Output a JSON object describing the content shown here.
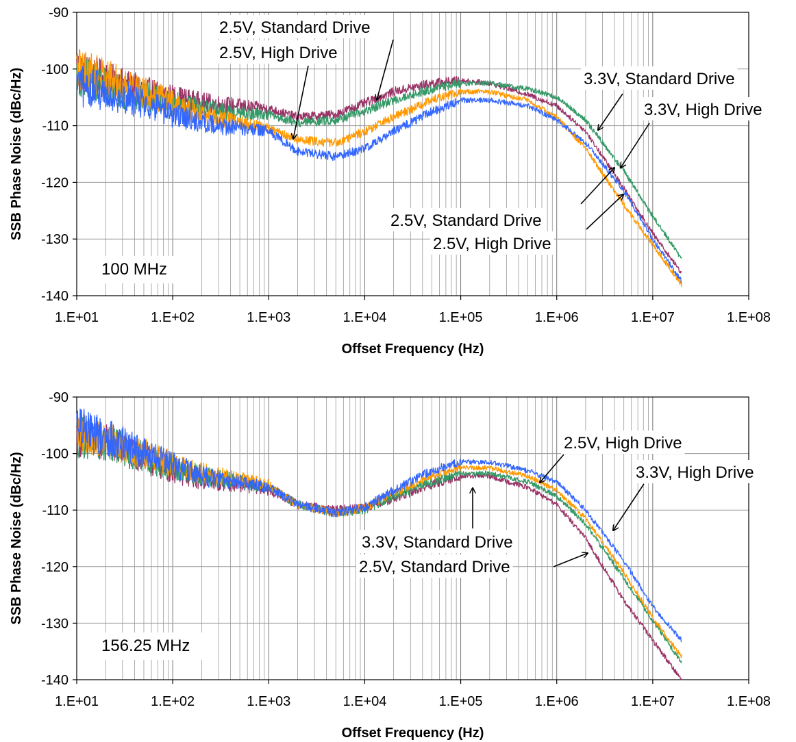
{
  "chart_data": [
    {
      "type": "line",
      "panel_label": "100 MHz",
      "xlabel": "Offset Frequency (Hz)",
      "ylabel": "SSB Phase  Noise (dBc/Hz)",
      "x_scale": "log",
      "xlim": [
        10,
        100000000
      ],
      "ylim": [
        -140,
        -90
      ],
      "xtick_labels": [
        "1.E+01",
        "1.E+02",
        "1.E+03",
        "1.E+04",
        "1.E+05",
        "1.E+06",
        "1.E+07",
        "1.E+08"
      ],
      "ytick_labels": [
        "-90",
        "-100",
        "-110",
        "-120",
        "-130",
        "-140"
      ],
      "grid": true,
      "series": [
        {
          "color": "#993366",
          "x": [
            10,
            20,
            50,
            100,
            200,
            500,
            1000,
            2000,
            5000,
            10000,
            20000,
            50000,
            100000,
            200000,
            500000,
            1000000,
            2000000,
            5000000,
            10000000,
            20000000
          ],
          "y": [
            -100,
            -102,
            -104,
            -105,
            -106,
            -106.5,
            -107,
            -108.5,
            -108,
            -106,
            -104,
            -102.5,
            -102,
            -102.5,
            -104.5,
            -106.5,
            -111,
            -121,
            -129,
            -136
          ]
        },
        {
          "color": "#339966",
          "x": [
            10,
            20,
            50,
            100,
            200,
            500,
            1000,
            2000,
            5000,
            10000,
            20000,
            50000,
            100000,
            200000,
            500000,
            1000000,
            2000000,
            5000000,
            10000000,
            20000000
          ],
          "y": [
            -101,
            -103,
            -105,
            -106,
            -107,
            -108,
            -108,
            -109.5,
            -109,
            -107.5,
            -105.5,
            -103.5,
            -102.5,
            -102.5,
            -103.5,
            -105,
            -109,
            -118,
            -126,
            -133.5
          ]
        },
        {
          "color": "#FF9900",
          "x": [
            10,
            20,
            50,
            100,
            200,
            500,
            1000,
            2000,
            5000,
            10000,
            20000,
            50000,
            100000,
            200000,
            500000,
            1000000,
            2000000,
            5000000,
            10000000,
            20000000
          ],
          "y": [
            -100,
            -101.5,
            -104,
            -106,
            -108,
            -109.5,
            -110.5,
            -112.5,
            -113,
            -111,
            -108.5,
            -105.5,
            -104,
            -104,
            -105.5,
            -108.5,
            -114,
            -124,
            -131,
            -138
          ]
        },
        {
          "color": "#3366FF",
          "x": [
            10,
            20,
            50,
            100,
            200,
            500,
            1000,
            2000,
            5000,
            10000,
            20000,
            50000,
            100000,
            200000,
            500000,
            1000000,
            2000000,
            5000000,
            10000000,
            20000000
          ],
          "y": [
            -103,
            -104,
            -106,
            -108,
            -109.5,
            -110.5,
            -111,
            -114.5,
            -115.5,
            -114,
            -111,
            -107.5,
            -105.5,
            -105.5,
            -106.5,
            -109,
            -113,
            -121.5,
            -130,
            -137.5
          ]
        }
      ],
      "annotations": [
        {
          "text": "2.5V, Standard Drive"
        },
        {
          "text": "2.5V, High Drive"
        },
        {
          "text": "3.3V, Standard Drive"
        },
        {
          "text": "3.3V, High Drive"
        },
        {
          "text": "2.5V, Standard Drive"
        },
        {
          "text": "2.5V, High Drive"
        }
      ]
    },
    {
      "type": "line",
      "panel_label": "156.25 MHz",
      "xlabel": "Offset Frequency (Hz)",
      "ylabel": "SSB Phase  Noise (dBc/Hz)",
      "x_scale": "log",
      "xlim": [
        10,
        100000000
      ],
      "ylim": [
        -140,
        -90
      ],
      "xtick_labels": [
        "1.E+01",
        "1.E+02",
        "1.E+03",
        "1.E+04",
        "1.E+05",
        "1.E+06",
        "1.E+07",
        "1.E+08"
      ],
      "ytick_labels": [
        "-90",
        "-100",
        "-110",
        "-120",
        "-130",
        "-140"
      ],
      "grid": true,
      "series": [
        {
          "color": "#993366",
          "x": [
            10,
            20,
            50,
            100,
            200,
            500,
            1000,
            2000,
            5000,
            10000,
            20000,
            50000,
            100000,
            200000,
            500000,
            1000000,
            2000000,
            5000000,
            10000000,
            20000000
          ],
          "y": [
            -97,
            -98,
            -101,
            -103,
            -104.5,
            -105.5,
            -106.5,
            -109,
            -110,
            -109.5,
            -108,
            -105.5,
            -104,
            -104,
            -106,
            -109,
            -115,
            -126,
            -133,
            -140
          ]
        },
        {
          "color": "#339966",
          "x": [
            10,
            20,
            50,
            100,
            200,
            500,
            1000,
            2000,
            5000,
            10000,
            20000,
            50000,
            100000,
            200000,
            500000,
            1000000,
            2000000,
            5000000,
            10000000,
            20000000
          ],
          "y": [
            -97,
            -98,
            -100.5,
            -102.5,
            -104,
            -105,
            -106,
            -109,
            -110.5,
            -110,
            -107.5,
            -105,
            -103.5,
            -103.5,
            -105,
            -107.5,
            -112.5,
            -122,
            -129.5,
            -137
          ]
        },
        {
          "color": "#FF9900",
          "x": [
            10,
            20,
            50,
            100,
            200,
            500,
            1000,
            2000,
            5000,
            10000,
            20000,
            50000,
            100000,
            200000,
            500000,
            1000000,
            2000000,
            5000000,
            10000000,
            20000000
          ],
          "y": [
            -96,
            -97.5,
            -100,
            -102,
            -103.5,
            -104.5,
            -105.5,
            -109,
            -110.5,
            -109.5,
            -107,
            -104,
            -102.5,
            -102.5,
            -104,
            -106.5,
            -111.5,
            -121,
            -129,
            -136
          ]
        },
        {
          "color": "#3366FF",
          "x": [
            10,
            20,
            50,
            100,
            200,
            500,
            1000,
            2000,
            5000,
            10000,
            20000,
            50000,
            100000,
            200000,
            500000,
            1000000,
            2000000,
            5000000,
            10000000,
            20000000
          ],
          "y": [
            -95,
            -97,
            -100,
            -102,
            -104,
            -105,
            -106,
            -109,
            -110.5,
            -109.5,
            -106.5,
            -103,
            -101.5,
            -101.5,
            -103,
            -105,
            -110,
            -119,
            -127,
            -133
          ]
        }
      ],
      "annotations": [
        {
          "text": "2.5V, High Drive"
        },
        {
          "text": "3.3V, High Drive"
        },
        {
          "text": "3.3V, Standard Drive"
        },
        {
          "text": "2.5V, Standard Drive"
        }
      ]
    }
  ]
}
